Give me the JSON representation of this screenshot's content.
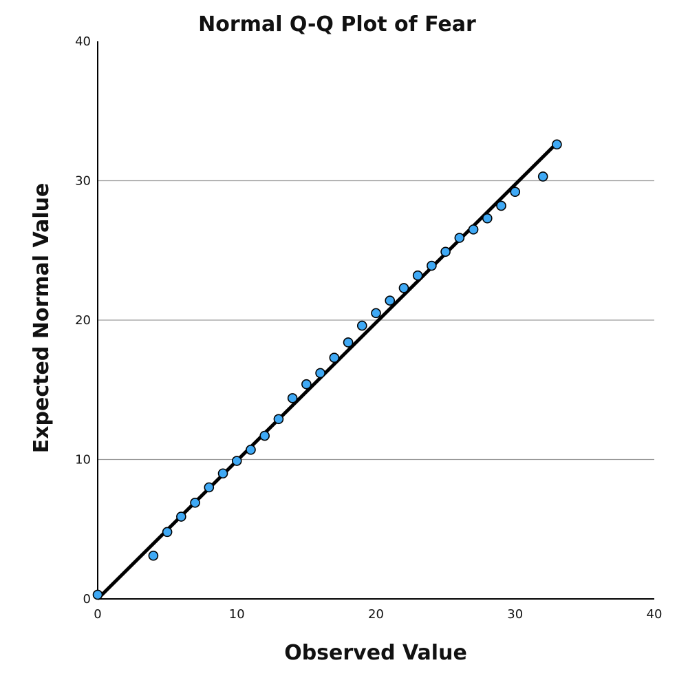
{
  "chart_data": {
    "type": "scatter",
    "title": "Normal Q-Q Plot of Fear",
    "xlabel": "Observed Value",
    "ylabel": "Expected Normal Value",
    "xlim": [
      0,
      40
    ],
    "ylim": [
      0,
      40
    ],
    "xticks": [
      "0",
      "10",
      "20",
      "30",
      "40"
    ],
    "yticks": [
      "0",
      "10",
      "20",
      "30",
      "40"
    ],
    "grid": "horizontal",
    "point_color": "#3fa9f5",
    "line_color": "#000000",
    "reference_line": {
      "x": [
        0,
        33
      ],
      "y": [
        0,
        32.7
      ]
    },
    "series": [
      {
        "x": [
          0,
          4,
          5,
          6,
          7,
          8,
          9,
          10,
          11,
          12,
          13,
          14,
          15,
          16,
          17,
          18,
          19,
          20,
          21,
          22,
          23,
          24,
          25,
          26,
          27,
          28,
          29,
          30,
          32,
          33
        ],
        "y": [
          0.3,
          3.1,
          4.8,
          5.9,
          6.9,
          8.0,
          9.0,
          9.9,
          10.7,
          11.7,
          12.9,
          14.4,
          15.4,
          16.2,
          17.3,
          18.4,
          19.6,
          20.5,
          21.4,
          22.3,
          23.2,
          23.9,
          24.9,
          25.9,
          26.5,
          27.3,
          28.2,
          29.2,
          30.3,
          32.6
        ]
      }
    ]
  }
}
